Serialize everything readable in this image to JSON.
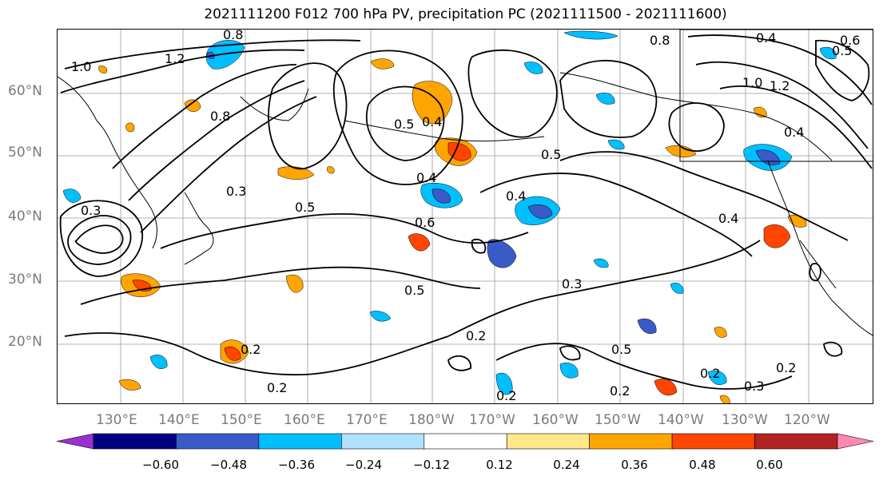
{
  "title": "2021111200 F012 700 hPa PV, precipitation PC (2021111500 - 2021111600)",
  "lat_labels": [
    "60°N",
    "50°N",
    "40°N",
    "30°N",
    "20°N"
  ],
  "lon_labels": [
    "130°E",
    "140°E",
    "150°E",
    "160°E",
    "170°E",
    "180°W",
    "170°W",
    "160°W",
    "150°W",
    "140°W",
    "130°W",
    "120°W"
  ],
  "contour_labels": [
    "0.8",
    "0.8",
    "1.0",
    "1.2",
    "0.8",
    "0.3",
    "0.4",
    "0.5",
    "0.4",
    "0.5",
    "0.6",
    "0.5",
    "0.4",
    "0.3",
    "0.5",
    "0.2",
    "0.2",
    "0.2",
    "0.5",
    "0.3",
    "0.2",
    "0.2",
    "0.4",
    "0.2",
    "0.3",
    "0.2",
    "0.4",
    "1.0",
    "1.2",
    "0.4",
    "0.5",
    "0.6"
  ],
  "colorbar": {
    "ticks": [
      "−0.60",
      "−0.48",
      "−0.36",
      "−0.24",
      "−0.12",
      "0.12",
      "0.24",
      "0.36",
      "0.48",
      "0.60"
    ],
    "colors": [
      "#9932cc",
      "#000080",
      "#3a5bc7",
      "#00bfff",
      "#b0e2ff",
      "#ffffff",
      "#ffe88a",
      "#ffa500",
      "#ff4500",
      "#b22222",
      "#ff88b0"
    ]
  }
}
